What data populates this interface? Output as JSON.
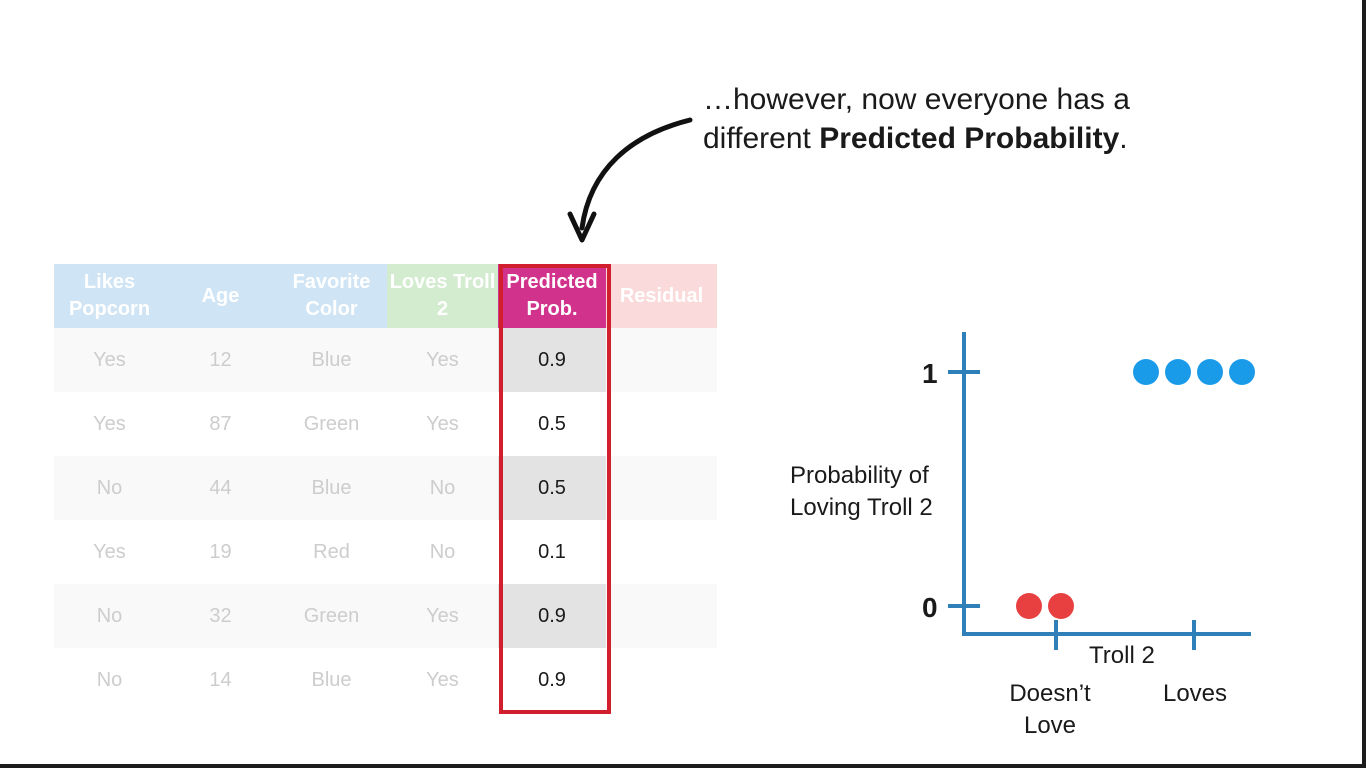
{
  "caption": {
    "line1": "…however, now everyone has a",
    "line2_prefix": "different ",
    "line2_bold": "Predicted Probability",
    "line2_suffix": "."
  },
  "table": {
    "headers": [
      "Likes Popcorn",
      "Age",
      "Favorite Color",
      "Loves Troll 2",
      "Predicted Prob.",
      "Residual"
    ],
    "rows": [
      [
        "Yes",
        "12",
        "Blue",
        "Yes",
        "0.9",
        ""
      ],
      [
        "Yes",
        "87",
        "Green",
        "Yes",
        "0.5",
        ""
      ],
      [
        "No",
        "44",
        "Blue",
        "No",
        "0.5",
        ""
      ],
      [
        "Yes",
        "19",
        "Red",
        "No",
        "0.1",
        ""
      ],
      [
        "No",
        "32",
        "Green",
        "Yes",
        "0.9",
        ""
      ],
      [
        "No",
        "14",
        "Blue",
        "Yes",
        "0.9",
        ""
      ]
    ]
  },
  "chart_data": {
    "type": "scatter",
    "ylabel": "Probability of Loving Troll 2",
    "xlabel": "Troll 2",
    "y_ticks": [
      "0",
      "1"
    ],
    "x_categories": [
      "Doesn’t Love",
      "Loves"
    ],
    "series": [
      {
        "color": "#e84040",
        "x": [
          "Doesn’t Love",
          "Doesn’t Love"
        ],
        "y": [
          0,
          0
        ]
      },
      {
        "color": "#1a9be9",
        "x": [
          "Loves",
          "Loves",
          "Loves",
          "Loves"
        ],
        "y": [
          1,
          1,
          1,
          1
        ]
      }
    ]
  },
  "colors": {
    "axis": "#2f7fb8",
    "highlight_box": "#d21f2e",
    "predicted_header": "#d1328b"
  }
}
